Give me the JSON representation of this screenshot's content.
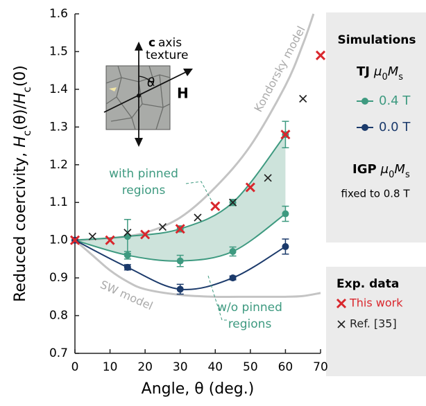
{
  "chart_data": {
    "type": "scatter",
    "xlabel": "Angle, θ (deg.)",
    "ylabel": [
      "Reduced coercivity, ",
      "H",
      "c",
      "(θ)/",
      "H",
      "c",
      "(0)"
    ],
    "xlim": [
      0,
      70
    ],
    "ylim": [
      0.7,
      1.6
    ],
    "xticks": [
      0,
      10,
      20,
      30,
      40,
      50,
      60,
      70
    ],
    "yticks": [
      0.7,
      0.8,
      0.9,
      {
        "value": 1,
        "label": "1.0"
      },
      1.1,
      1.2,
      1.3,
      1.4,
      1.5,
      1.6
    ],
    "series": [
      {
        "name": "0.4 T",
        "color": "#3e9a80",
        "marker": "circle",
        "line": true,
        "x": [
          0,
          15,
          30,
          45,
          60
        ],
        "values": [
          1.0,
          1.01,
          1.03,
          1.1,
          1.28
        ],
        "errors": [
          null,
          0.045,
          0.008,
          0.008,
          0.035
        ]
      },
      {
        "color": "#3e9a80",
        "marker": "circle",
        "line": true,
        "x": [
          0,
          15,
          30,
          45,
          60
        ],
        "values": [
          1.0,
          0.96,
          0.945,
          0.97,
          1.07
        ],
        "errors": [
          null,
          0.01,
          0.015,
          0.012,
          0.02
        ]
      },
      {
        "name": "0.0 T",
        "color": "#1b3a6b",
        "marker": "circle",
        "line": true,
        "x": [
          0,
          15,
          30,
          45,
          60
        ],
        "values": [
          1.0,
          0.928,
          0.87,
          0.9,
          0.983
        ],
        "errors": [
          null,
          0.007,
          0.013,
          0.005,
          0.02
        ]
      },
      {
        "name": "This work",
        "color": "#d9262c",
        "marker": "x",
        "line": false,
        "x": [
          0,
          10,
          20,
          30,
          40,
          50,
          60,
          70
        ],
        "values": [
          1.0,
          1.0,
          1.015,
          1.03,
          1.09,
          1.14,
          1.28,
          1.49
        ]
      },
      {
        "name": "Ref. [35]",
        "color": "#222222",
        "marker": "x",
        "line": false,
        "x": [
          5,
          15,
          25,
          35,
          45,
          55,
          65
        ],
        "values": [
          1.01,
          1.02,
          1.035,
          1.06,
          1.1,
          1.165,
          1.375
        ]
      }
    ],
    "fill_color": "#cde3db",
    "models": [
      {
        "name": "Kondorsky model",
        "color": "#c4c4c4",
        "x": [
          0,
          10,
          20,
          30,
          40,
          50,
          60,
          65,
          68
        ],
        "values": [
          1.0,
          1.005,
          1.02,
          1.06,
          1.14,
          1.25,
          1.41,
          1.52,
          1.6
        ]
      },
      {
        "name": "SW model",
        "color": "#c4c4c4",
        "x": [
          0,
          5,
          10,
          15,
          20,
          30,
          40,
          50,
          60,
          65,
          70
        ],
        "values": [
          1.0,
          0.96,
          0.92,
          0.89,
          0.87,
          0.855,
          0.85,
          0.85,
          0.85,
          0.852,
          0.86
        ]
      }
    ],
    "annotations": {
      "pinned": [
        "with pinned",
        "regions"
      ],
      "unpinned": [
        "w/o pinned",
        "regions"
      ]
    },
    "inset": {
      "c": "c",
      "axis": "axis",
      "texture": "texture",
      "theta": "θ",
      "field": "H"
    },
    "legend": {
      "sim_title": "Simulations",
      "tj": "TJ",
      "igp": "IGP",
      "moment": [
        "μ",
        "0",
        "M",
        "s"
      ],
      "igp_note": "fixed to 0.8 T",
      "exp_title": "Exp. data"
    }
  }
}
